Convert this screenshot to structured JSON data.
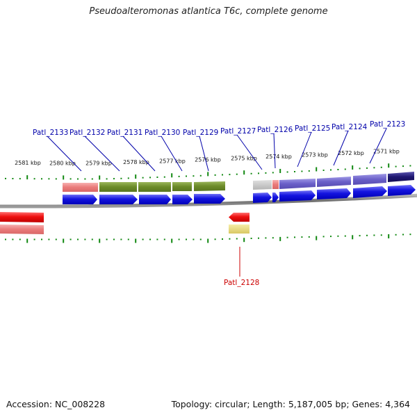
{
  "title": "Pseudoalteromonas atlantica T6c, complete genome",
  "footer": {
    "accession_label": "Accession:",
    "accession_value": "NC_008228",
    "topology_label": "Topology:",
    "topology_value": "circular",
    "length_label": "Length:",
    "length_value": "5,187,005 bp",
    "genes_label": "Genes:",
    "genes_value": "4,364"
  },
  "scale_ticks": [
    "2581 kbp",
    "2580 kbp",
    "2579 kbp",
    "2578 kbp",
    "2577 kbp",
    "2576 kbp",
    "2575 kbp",
    "2574 kbp",
    "2573 kbp",
    "2572 kbp",
    "2571 kbp"
  ],
  "genes": [
    {
      "label": "Patl_2133",
      "strand": "forward"
    },
    {
      "label": "Patl_2132",
      "strand": "forward"
    },
    {
      "label": "Patl_2131",
      "strand": "forward"
    },
    {
      "label": "Patl_2130",
      "strand": "forward"
    },
    {
      "label": "Patl_2129",
      "strand": "forward"
    },
    {
      "label": "Patl_2128",
      "strand": "reverse"
    },
    {
      "label": "Patl_2127",
      "strand": "forward"
    },
    {
      "label": "Patl_2126",
      "strand": "forward"
    },
    {
      "label": "Patl_2125",
      "strand": "forward"
    },
    {
      "label": "Patl_2124",
      "strand": "forward"
    },
    {
      "label": "Patl_2123",
      "strand": "forward"
    }
  ],
  "colors": {
    "forward_gene": "#1010e6",
    "reverse_gene": "#ee1111",
    "forward_label": "#0000aa",
    "reverse_label": "#cc0000",
    "tick": "#118811",
    "backbone": "#7a7a7a",
    "cog_pink": "#ee8080",
    "cog_olive": "#6e8a2c",
    "cog_grey": "#bdbdbd",
    "cog_lavender": "#6a5fc8",
    "cog_navy": "#241a7a",
    "cog_yellow": "#e8d97a"
  }
}
